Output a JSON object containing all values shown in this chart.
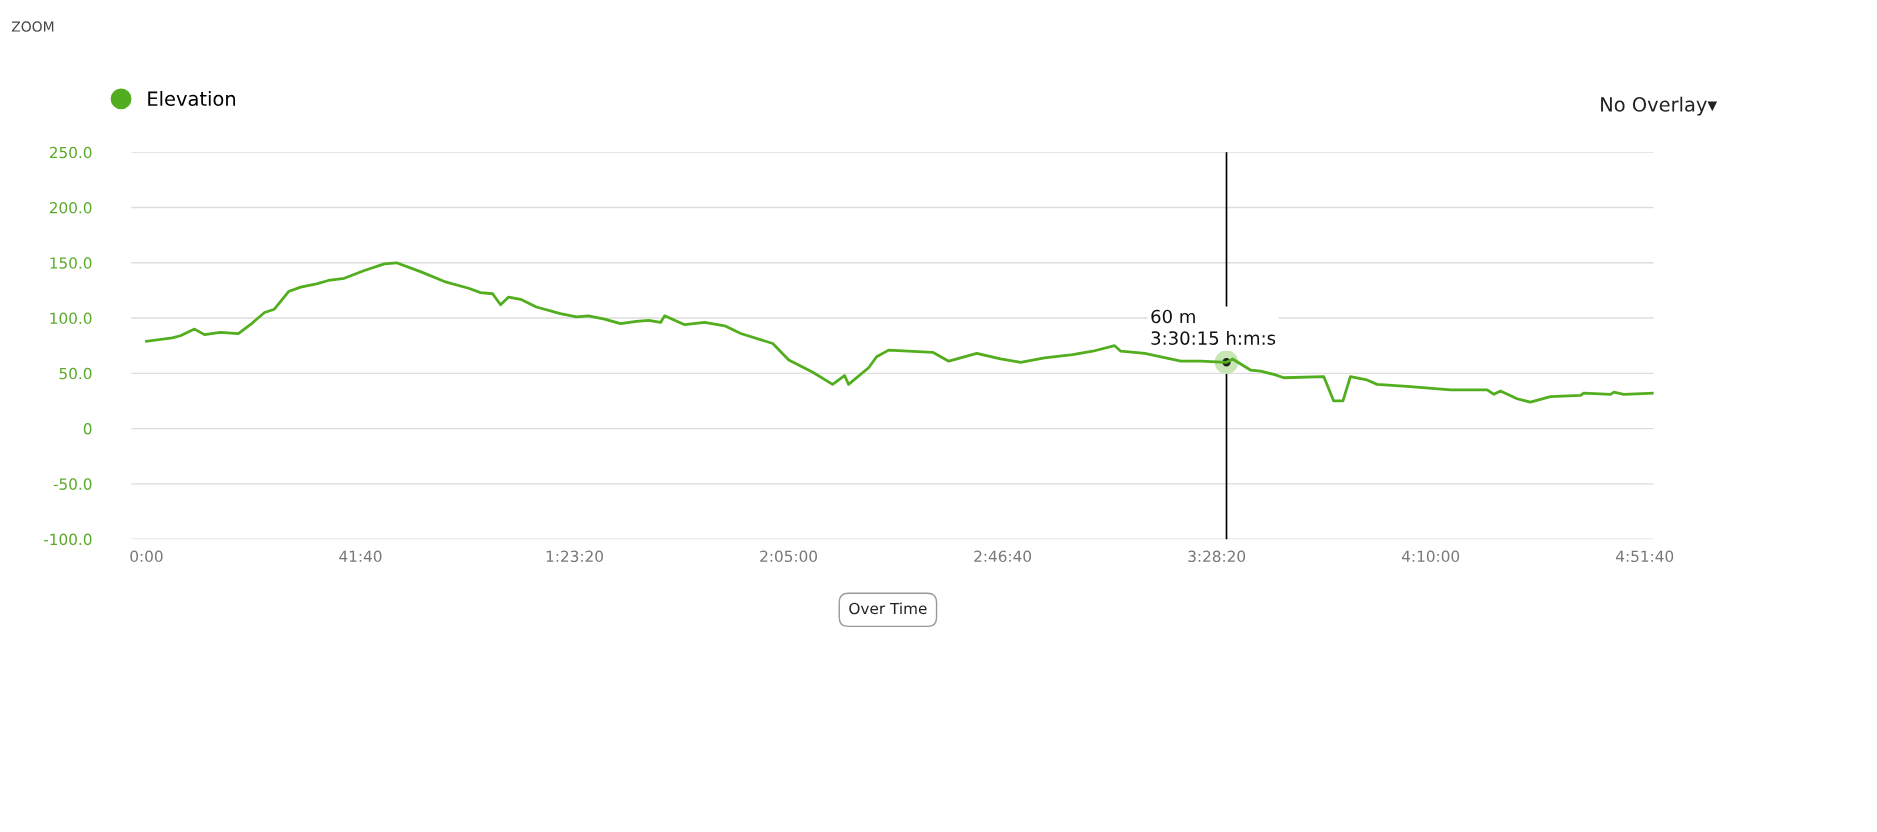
{
  "chart_data": {
    "type": "line",
    "legend": "top left",
    "grid": "y",
    "marker": "none",
    "line_style": "solid",
    "xlim": [
      -176,
      17604
    ],
    "ylim": [
      -100,
      250
    ],
    "xticks": [
      {
        "value": 0,
        "label": "0:00"
      },
      {
        "value": 2500,
        "label": "41:40"
      },
      {
        "value": 5000,
        "label": "1:23:20"
      },
      {
        "value": 7500,
        "label": "2:05:00"
      },
      {
        "value": 10000,
        "label": "2:46:40"
      },
      {
        "value": 12500,
        "label": "3:28:20"
      },
      {
        "value": 15000,
        "label": "4:10:00"
      },
      {
        "value": 17500,
        "label": "4:51:40"
      }
    ],
    "yticks": [
      {
        "value": 250,
        "label": "250.0"
      },
      {
        "value": 200,
        "label": "200.0"
      },
      {
        "value": 150,
        "label": "150.0"
      },
      {
        "value": 100,
        "label": "100.0"
      },
      {
        "value": 50,
        "label": "50.0"
      },
      {
        "value": 0,
        "label": "0"
      },
      {
        "value": -50,
        "label": "-50.0"
      },
      {
        "value": -100,
        "label": "-100.0"
      }
    ],
    "ref_lines": [
      {
        "axis": "x",
        "value": 12615,
        "color": "#000000"
      }
    ],
    "annotations": [
      "ZOOM",
      "No Overlay▾",
      "Over Time",
      {
        "text": "60 m\n3:30:15 h:m:s",
        "x": 12615,
        "y": 60
      }
    ],
    "series": [
      {
        "name": "Elevation",
        "color": "#52ae1f",
        "x": [
          0,
          302,
          396,
          562,
          677,
          864,
          1073,
          1213,
          1379,
          1494,
          1660,
          1800,
          1987,
          2124,
          2311,
          2545,
          2779,
          2920,
          3200,
          3481,
          3762,
          3902,
          4043,
          4136,
          4230,
          4370,
          4554,
          4835,
          5022,
          5162,
          5350,
          5537,
          5724,
          5864,
          6005,
          6052,
          6286,
          6520,
          6754,
          6941,
          7315,
          7502,
          7783,
          8014,
          8154,
          8201,
          8435,
          8528,
          8669,
          9184,
          9371,
          9698,
          9976,
          10210,
          10490,
          10818,
          11052,
          11308,
          11380,
          11660,
          12082,
          12316,
          12615,
          12686,
          12895,
          13014,
          13169,
          13284,
          13752,
          13867,
          13975,
          14062,
          14256,
          14375,
          14764,
          15232,
          15660,
          15739,
          15815,
          16009,
          16164,
          16398,
          16751,
          16787,
          17100,
          17140,
          17255,
          17600
        ],
        "values": [
          79,
          82,
          84,
          90,
          85,
          87,
          86,
          94,
          105,
          108,
          124,
          128,
          131,
          134,
          136,
          143,
          149,
          150,
          142,
          133,
          127,
          123,
          122,
          112,
          119,
          117,
          110,
          104,
          101,
          102,
          99,
          95,
          97,
          98,
          96,
          102,
          94,
          96,
          93,
          86,
          77,
          62,
          51,
          40,
          48,
          40,
          55,
          65,
          71,
          69,
          61,
          68,
          63,
          60,
          64,
          67,
          70,
          75,
          70,
          68,
          61,
          61,
          60,
          63,
          53,
          52,
          49,
          46,
          47,
          25,
          25,
          47,
          44,
          40,
          38,
          35,
          35,
          31,
          34,
          27,
          24,
          29,
          30,
          32,
          31,
          33,
          31,
          32
        ]
      }
    ]
  }
}
